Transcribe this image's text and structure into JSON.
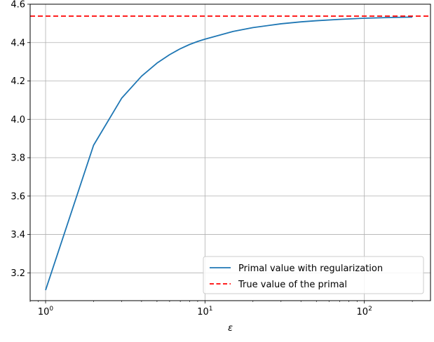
{
  "chart_data": {
    "type": "line",
    "title": "",
    "xlabel": "ε",
    "ylabel": "",
    "xscale": "log",
    "xlim": [
      0.8,
      260
    ],
    "ylim": [
      3.055,
      4.6
    ],
    "grid": true,
    "legend_position": "lower-right",
    "x_ticks": [
      {
        "value": 1,
        "base": "10",
        "exp": "0"
      },
      {
        "value": 10,
        "base": "10",
        "exp": "1"
      },
      {
        "value": 100,
        "base": "10",
        "exp": "2"
      }
    ],
    "y_ticks": [
      {
        "value": 3.2,
        "label": "3.2"
      },
      {
        "value": 3.4,
        "label": "3.4"
      },
      {
        "value": 3.6,
        "label": "3.6"
      },
      {
        "value": 3.8,
        "label": "3.8"
      },
      {
        "value": 4.0,
        "label": "4.0"
      },
      {
        "value": 4.2,
        "label": "4.2"
      },
      {
        "value": 4.4,
        "label": "4.4"
      },
      {
        "value": 4.6,
        "label": "4.6"
      }
    ],
    "series": [
      {
        "name": "Primal value with regularization",
        "color": "#1f77b4",
        "style": "solid",
        "x": [
          1,
          2,
          3,
          4,
          5,
          6,
          7,
          8,
          9,
          10,
          15,
          20,
          30,
          40,
          50,
          70,
          100,
          150,
          200
        ],
        "y": [
          3.11,
          3.865,
          4.11,
          4.225,
          4.293,
          4.337,
          4.368,
          4.39,
          4.406,
          4.418,
          4.458,
          4.478,
          4.498,
          4.508,
          4.514,
          4.521,
          4.527,
          4.531,
          4.533
        ]
      },
      {
        "name": "True value of the primal",
        "color": "#ff0000",
        "style": "dashed",
        "x": [
          0.8,
          260
        ],
        "y": [
          4.538,
          4.538
        ]
      }
    ]
  }
}
